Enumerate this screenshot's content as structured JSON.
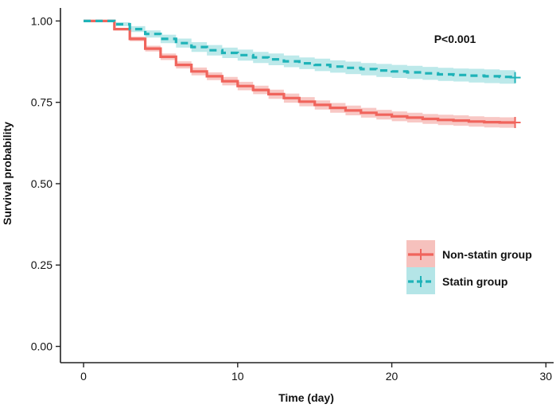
{
  "chart_data": {
    "type": "line",
    "subtype": "kaplan-meier",
    "title": "",
    "xlabel": "Time (day)",
    "ylabel": "Survival probability",
    "xlim": [
      -1.5,
      30.5
    ],
    "ylim": [
      -0.05,
      1.04
    ],
    "xticks": [
      0,
      10,
      20,
      30
    ],
    "yticks": [
      0.0,
      0.25,
      0.5,
      0.75,
      1.0
    ],
    "xtick_labels": [
      "0",
      "10",
      "20",
      "30"
    ],
    "ytick_labels": [
      "0.00",
      "0.25",
      "0.50",
      "0.75",
      "1.00"
    ],
    "grid": false,
    "annotation": "P<0.001",
    "legend_position": "lower-right",
    "series": [
      {
        "name": "Non-statin group",
        "color": "#f0645c",
        "band_color": "#f5b6b2",
        "line_style": "solid",
        "x": [
          0,
          1,
          2,
          3,
          4,
          5,
          6,
          7,
          8,
          9,
          10,
          11,
          12,
          13,
          14,
          15,
          16,
          17,
          18,
          19,
          20,
          21,
          22,
          23,
          24,
          25,
          26,
          27,
          28
        ],
        "values": [
          1.0,
          1.0,
          0.975,
          0.945,
          0.915,
          0.89,
          0.865,
          0.845,
          0.83,
          0.815,
          0.8,
          0.788,
          0.775,
          0.763,
          0.752,
          0.742,
          0.733,
          0.725,
          0.718,
          0.712,
          0.707,
          0.703,
          0.699,
          0.696,
          0.694,
          0.691,
          0.689,
          0.688,
          0.688
        ],
        "band_halfwidth": [
          0.0,
          0.0,
          0.004,
          0.007,
          0.009,
          0.01,
          0.011,
          0.012,
          0.012,
          0.013,
          0.013,
          0.013,
          0.014,
          0.014,
          0.014,
          0.014,
          0.015,
          0.015,
          0.015,
          0.015,
          0.015,
          0.015,
          0.015,
          0.016,
          0.016,
          0.016,
          0.016,
          0.016,
          0.016
        ],
        "censor_x": 28,
        "censor_value": 0.688
      },
      {
        "name": "Statin group",
        "color": "#1fb3b8",
        "band_color": "#a7e1e3",
        "line_style": "dashed",
        "x": [
          0,
          1,
          2,
          3,
          4,
          5,
          6,
          7,
          8,
          9,
          10,
          11,
          12,
          13,
          14,
          15,
          16,
          17,
          18,
          19,
          20,
          21,
          22,
          23,
          24,
          25,
          26,
          27,
          28
        ],
        "values": [
          1.0,
          1.0,
          0.99,
          0.975,
          0.96,
          0.945,
          0.932,
          0.92,
          0.91,
          0.902,
          0.895,
          0.888,
          0.882,
          0.876,
          0.87,
          0.865,
          0.86,
          0.856,
          0.852,
          0.848,
          0.845,
          0.842,
          0.839,
          0.836,
          0.834,
          0.832,
          0.83,
          0.828,
          0.826
        ],
        "band_halfwidth": [
          0.0,
          0.0,
          0.006,
          0.009,
          0.011,
          0.013,
          0.014,
          0.015,
          0.016,
          0.016,
          0.017,
          0.017,
          0.018,
          0.018,
          0.018,
          0.019,
          0.019,
          0.019,
          0.019,
          0.02,
          0.02,
          0.02,
          0.02,
          0.02,
          0.02,
          0.021,
          0.021,
          0.021,
          0.021
        ],
        "censor_x": 28,
        "censor_value": 0.826
      }
    ]
  }
}
